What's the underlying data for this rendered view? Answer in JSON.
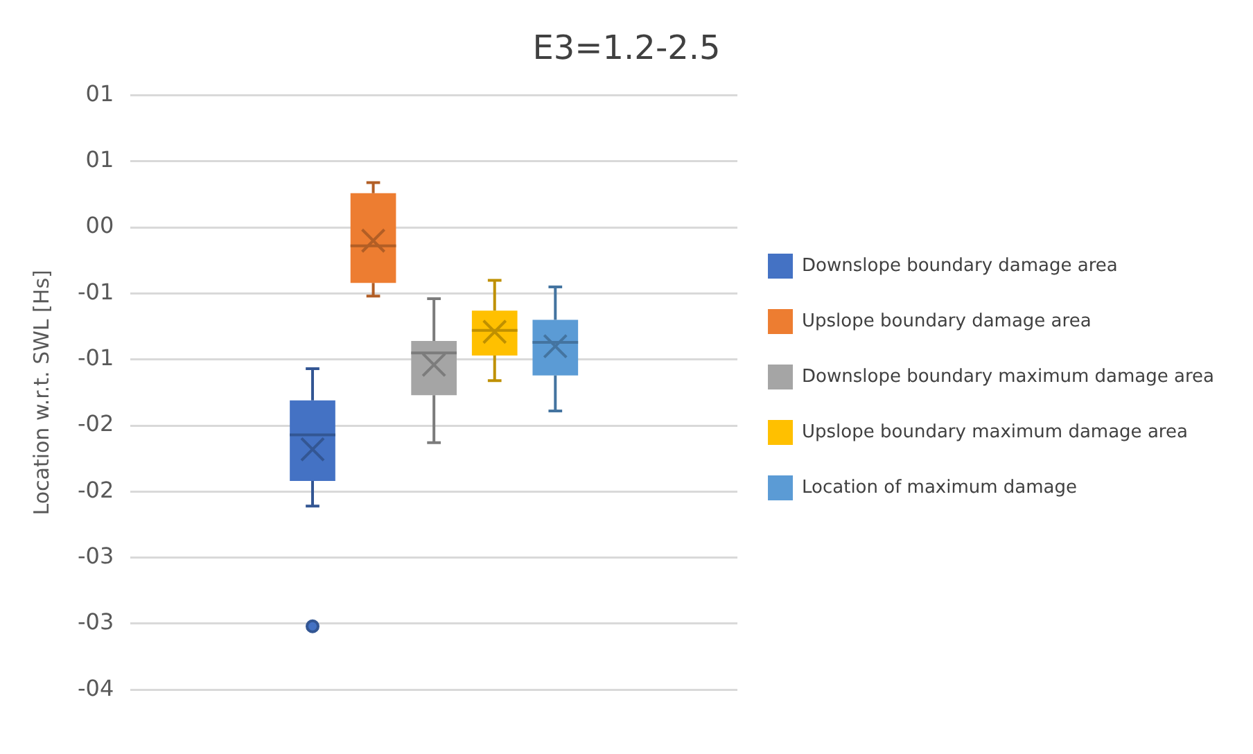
{
  "chart_data": {
    "type": "box",
    "title": "E3=1.2-2.5",
    "ylabel": "Location w.r.t. SWL [Hs]",
    "categories": [
      null
    ],
    "series": [
      {
        "name": "Downslope boundary damage area",
        "color": "#4472c4",
        "boxes": [
          {
            "low": -2.11,
            "q1": -1.92,
            "median": -1.57,
            "q3": -1.31,
            "high": -1.07,
            "mean": -1.68,
            "outliers": [
              -3.02
            ]
          }
        ]
      },
      {
        "name": "Upslope boundary damage area",
        "color": "#ed7d31",
        "boxes": [
          {
            "low": -0.52,
            "q1": -0.42,
            "median": -0.14,
            "q3": 0.26,
            "high": 0.34,
            "mean": -0.1
          }
        ]
      },
      {
        "name": "Downslope boundary maximum damage area",
        "color": "#a5a5a5",
        "boxes": [
          {
            "low": -1.63,
            "q1": -1.27,
            "median": -0.95,
            "q3": -0.86,
            "high": -0.54,
            "mean": -1.04
          }
        ]
      },
      {
        "name": "Upslope boundary maximum damage area",
        "color": "#ffc000",
        "boxes": [
          {
            "low": -1.16,
            "q1": -0.97,
            "median": -0.78,
            "q3": -0.63,
            "high": -0.4,
            "mean": -0.79
          }
        ]
      },
      {
        "name": "Location of maximum damage",
        "color": "#5b9bd5",
        "boxes": [
          {
            "low": -1.39,
            "q1": -1.12,
            "median": -0.87,
            "q3": -0.7,
            "high": -0.45,
            "mean": -0.9
          }
        ]
      }
    ],
    "ylim": [
      -3.5,
      1.0
    ],
    "yticks": [
      {
        "value": 1.0,
        "label": "01"
      },
      {
        "value": 0.5,
        "label": "01"
      },
      {
        "value": 0,
        "label": "00"
      },
      {
        "value": -0.5,
        "label": "-01"
      },
      {
        "value": -1.0,
        "label": "-01"
      },
      {
        "value": -1.5,
        "label": "-02"
      },
      {
        "value": -2.0,
        "label": "-02"
      },
      {
        "value": -2.5,
        "label": "-03"
      },
      {
        "value": -3.0,
        "label": "-03"
      },
      {
        "value": -3.5,
        "label": "-04"
      }
    ],
    "grid": "y",
    "legend": "right"
  }
}
